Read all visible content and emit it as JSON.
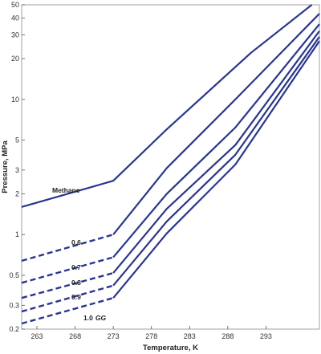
{
  "chart_data": {
    "type": "line",
    "xlabel": "Temperature, K",
    "ylabel": "Pressure, MPa",
    "xlim": [
      261,
      300
    ],
    "ylim": [
      0.2,
      50
    ],
    "yscale": "log",
    "x_ticks": [
      263,
      268,
      273,
      278,
      283,
      288,
      293
    ],
    "y_ticks": [
      {
        "value": 0.2,
        "label": "0.2"
      },
      {
        "value": 0.3,
        "label": "0.3"
      },
      {
        "value": 0.5,
        "label": "0.5"
      },
      {
        "value": 1,
        "label": "1"
      },
      {
        "value": 2,
        "label": "2"
      },
      {
        "value": 3,
        "label": "3"
      },
      {
        "value": 5,
        "label": "5"
      },
      {
        "value": 10,
        "label": "10"
      },
      {
        "value": 20,
        "label": "20"
      },
      {
        "value": 30,
        "label": "30"
      },
      {
        "value": 40,
        "label": "40"
      },
      {
        "value": 50,
        "label": "50"
      }
    ],
    "grid": false,
    "line_color": "#283593",
    "series": [
      {
        "name": "Methane",
        "label_text": "Methane",
        "dashed_to": 0,
        "points": [
          [
            261,
            1.6
          ],
          [
            273,
            2.5
          ],
          [
            280,
            6
          ],
          [
            291,
            22
          ],
          [
            299,
            50
          ]
        ]
      },
      {
        "name": "0.6",
        "label_text": "0.6",
        "dashed_to": 1,
        "points": [
          [
            261,
            0.64
          ],
          [
            273,
            1.0
          ],
          [
            280,
            3.1
          ],
          [
            289,
            10
          ],
          [
            300,
            43
          ]
        ]
      },
      {
        "name": "0.7",
        "label_text": "0.7",
        "dashed_to": 1,
        "points": [
          [
            261,
            0.44
          ],
          [
            273,
            0.68
          ],
          [
            280,
            2.0
          ],
          [
            289,
            6.2
          ],
          [
            300,
            36
          ]
        ]
      },
      {
        "name": "0.8",
        "label_text": "0.8",
        "dashed_to": 1,
        "points": [
          [
            261,
            0.34
          ],
          [
            273,
            0.52
          ],
          [
            280,
            1.55
          ],
          [
            289,
            4.6
          ],
          [
            300,
            32
          ]
        ]
      },
      {
        "name": "0.9",
        "label_text": "0.9",
        "dashed_to": 1,
        "points": [
          [
            261,
            0.27
          ],
          [
            273,
            0.42
          ],
          [
            280,
            1.25
          ],
          [
            289,
            3.9
          ],
          [
            300,
            29
          ]
        ]
      },
      {
        "name": "1.0",
        "label_text": "1.0",
        "label_suffix": "GG",
        "dashed_to": 1,
        "points": [
          [
            261,
            0.22
          ],
          [
            273,
            0.34
          ],
          [
            280,
            1.02
          ],
          [
            289,
            3.3
          ],
          [
            300,
            27
          ]
        ]
      }
    ]
  }
}
